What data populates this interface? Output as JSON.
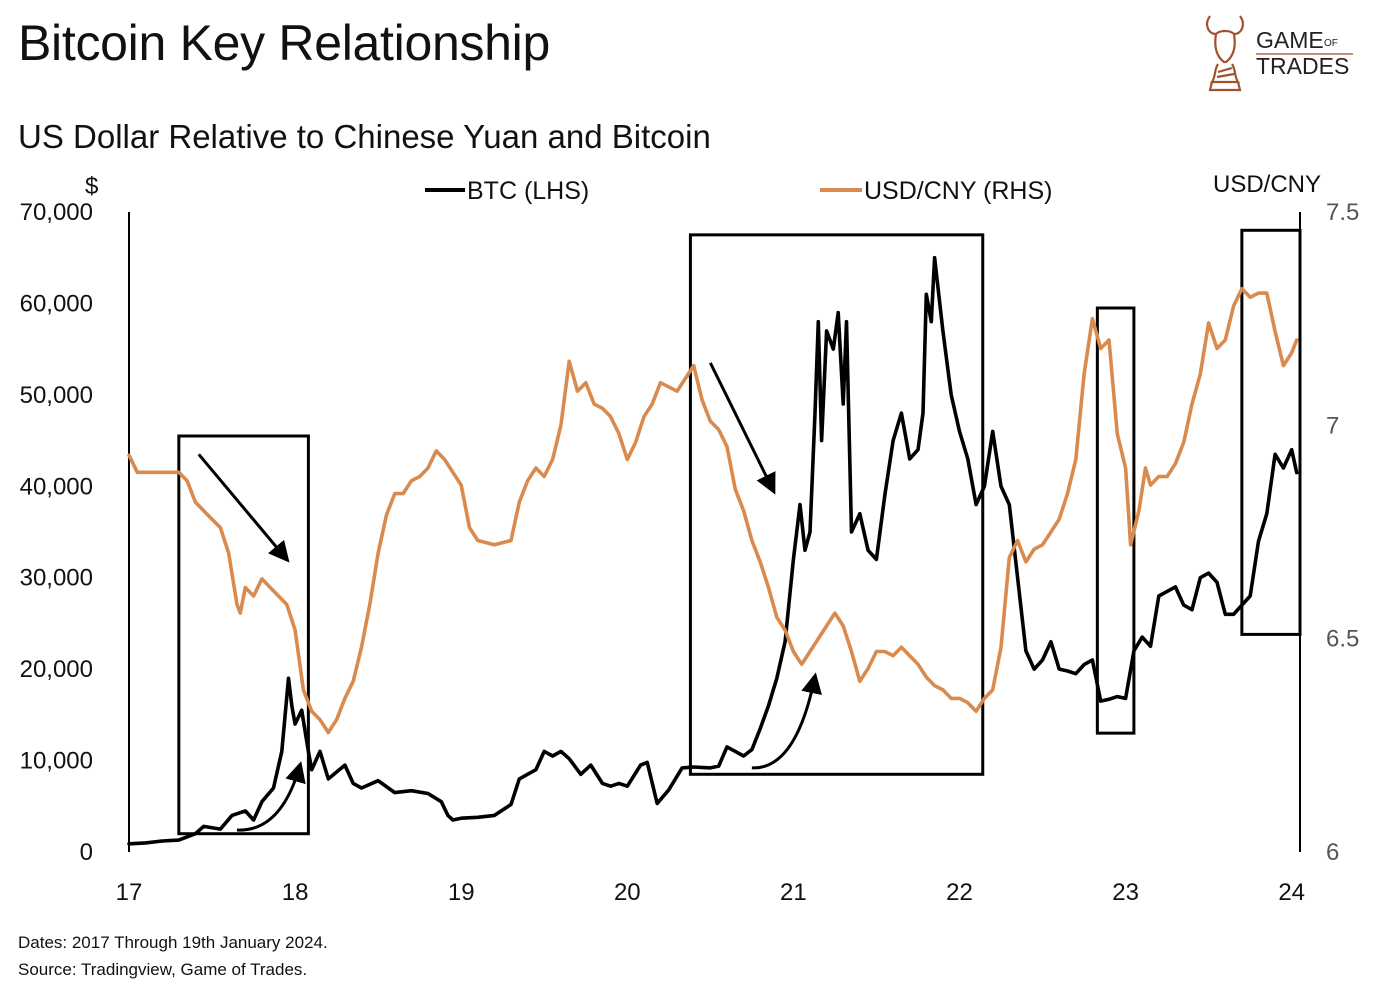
{
  "header": {
    "title": "Bitcoin Key Relationship",
    "subtitle": "US Dollar Relative to Chinese Yuan and Bitcoin"
  },
  "logo": {
    "line1": "GAME",
    "line1_small": "OF",
    "line2": "TRADES",
    "color": "#a0522d"
  },
  "footer": {
    "dates_note": "Dates: 2017 Through 19th January 2024.",
    "source_note": "Source: Tradingview, Game of Trades."
  },
  "colors": {
    "btc": "#000000",
    "usdcny": "#d98a4e",
    "box": "#000000",
    "axis": "#000000",
    "right_tick": "#555555"
  },
  "chart_data": {
    "type": "line",
    "title": "US Dollar Relative to Chinese Yuan and Bitcoin",
    "xlabel": "",
    "ylabel_left": "$",
    "ylabel_right": "USD/CNY",
    "x_ticks": [
      "17",
      "18",
      "19",
      "20",
      "21",
      "22",
      "23",
      "24"
    ],
    "x_range": [
      2017,
      2024.05
    ],
    "y_left_range": [
      0,
      70000
    ],
    "y_left_ticks": [
      "0",
      "10,000",
      "20,000",
      "30,000",
      "40,000",
      "50,000",
      "60,000",
      "70,000"
    ],
    "y_right_range": [
      6,
      7.5
    ],
    "y_right_ticks": [
      "6",
      "6.5",
      "7",
      "7.5"
    ],
    "legend": [
      "BTC (LHS)",
      "USD/CNY (RHS)"
    ],
    "series": [
      {
        "name": "BTC (LHS)",
        "axis": "left",
        "points": [
          [
            2017.0,
            900
          ],
          [
            2017.1,
            1000
          ],
          [
            2017.2,
            1200
          ],
          [
            2017.3,
            1300
          ],
          [
            2017.4,
            2000
          ],
          [
            2017.45,
            2800
          ],
          [
            2017.55,
            2500
          ],
          [
            2017.62,
            4000
          ],
          [
            2017.7,
            4500
          ],
          [
            2017.75,
            3500
          ],
          [
            2017.8,
            5500
          ],
          [
            2017.87,
            7000
          ],
          [
            2017.92,
            11000
          ],
          [
            2017.96,
            19000
          ],
          [
            2017.98,
            16000
          ],
          [
            2018.0,
            14000
          ],
          [
            2018.04,
            15500
          ],
          [
            2018.08,
            11000
          ],
          [
            2018.1,
            9000
          ],
          [
            2018.15,
            11000
          ],
          [
            2018.2,
            8000
          ],
          [
            2018.3,
            9500
          ],
          [
            2018.35,
            7500
          ],
          [
            2018.4,
            7000
          ],
          [
            2018.5,
            7800
          ],
          [
            2018.6,
            6500
          ],
          [
            2018.7,
            6700
          ],
          [
            2018.8,
            6400
          ],
          [
            2018.88,
            5500
          ],
          [
            2018.92,
            4000
          ],
          [
            2018.95,
            3500
          ],
          [
            2019.0,
            3700
          ],
          [
            2019.1,
            3800
          ],
          [
            2019.2,
            4000
          ],
          [
            2019.3,
            5200
          ],
          [
            2019.35,
            8000
          ],
          [
            2019.45,
            9000
          ],
          [
            2019.5,
            11000
          ],
          [
            2019.55,
            10500
          ],
          [
            2019.6,
            11000
          ],
          [
            2019.65,
            10200
          ],
          [
            2019.72,
            8500
          ],
          [
            2019.78,
            9500
          ],
          [
            2019.85,
            7500
          ],
          [
            2019.9,
            7200
          ],
          [
            2019.95,
            7500
          ],
          [
            2020.0,
            7200
          ],
          [
            2020.08,
            9500
          ],
          [
            2020.12,
            9800
          ],
          [
            2020.18,
            5300
          ],
          [
            2020.25,
            6800
          ],
          [
            2020.33,
            9200
          ],
          [
            2020.4,
            9300
          ],
          [
            2020.5,
            9200
          ],
          [
            2020.55,
            9400
          ],
          [
            2020.6,
            11500
          ],
          [
            2020.65,
            11000
          ],
          [
            2020.7,
            10500
          ],
          [
            2020.75,
            11200
          ],
          [
            2020.8,
            13500
          ],
          [
            2020.85,
            16000
          ],
          [
            2020.9,
            19000
          ],
          [
            2020.95,
            23000
          ],
          [
            2021.0,
            32000
          ],
          [
            2021.04,
            38000
          ],
          [
            2021.07,
            33000
          ],
          [
            2021.1,
            35000
          ],
          [
            2021.13,
            48000
          ],
          [
            2021.15,
            58000
          ],
          [
            2021.17,
            45000
          ],
          [
            2021.2,
            57000
          ],
          [
            2021.24,
            55000
          ],
          [
            2021.27,
            59000
          ],
          [
            2021.3,
            49000
          ],
          [
            2021.32,
            58000
          ],
          [
            2021.35,
            35000
          ],
          [
            2021.4,
            37000
          ],
          [
            2021.45,
            33000
          ],
          [
            2021.5,
            32000
          ],
          [
            2021.55,
            39000
          ],
          [
            2021.6,
            45000
          ],
          [
            2021.65,
            48000
          ],
          [
            2021.7,
            43000
          ],
          [
            2021.75,
            44000
          ],
          [
            2021.78,
            48000
          ],
          [
            2021.8,
            61000
          ],
          [
            2021.83,
            58000
          ],
          [
            2021.85,
            65000
          ],
          [
            2021.9,
            57000
          ],
          [
            2021.95,
            50000
          ],
          [
            2022.0,
            46000
          ],
          [
            2022.05,
            43000
          ],
          [
            2022.1,
            38000
          ],
          [
            2022.15,
            40000
          ],
          [
            2022.2,
            46000
          ],
          [
            2022.25,
            40000
          ],
          [
            2022.3,
            38000
          ],
          [
            2022.35,
            30000
          ],
          [
            2022.4,
            22000
          ],
          [
            2022.45,
            20000
          ],
          [
            2022.5,
            21000
          ],
          [
            2022.55,
            23000
          ],
          [
            2022.6,
            20000
          ],
          [
            2022.65,
            19800
          ],
          [
            2022.7,
            19500
          ],
          [
            2022.75,
            20500
          ],
          [
            2022.8,
            21000
          ],
          [
            2022.85,
            16500
          ],
          [
            2022.9,
            16700
          ],
          [
            2022.95,
            17000
          ],
          [
            2023.0,
            16800
          ],
          [
            2023.05,
            22000
          ],
          [
            2023.1,
            23500
          ],
          [
            2023.15,
            22500
          ],
          [
            2023.2,
            28000
          ],
          [
            2023.25,
            28500
          ],
          [
            2023.3,
            29000
          ],
          [
            2023.35,
            27000
          ],
          [
            2023.4,
            26500
          ],
          [
            2023.45,
            30000
          ],
          [
            2023.5,
            30500
          ],
          [
            2023.55,
            29500
          ],
          [
            2023.6,
            26000
          ],
          [
            2023.65,
            26000
          ],
          [
            2023.7,
            27000
          ],
          [
            2023.75,
            28000
          ],
          [
            2023.8,
            34000
          ],
          [
            2023.85,
            37000
          ],
          [
            2023.9,
            43500
          ],
          [
            2023.95,
            42000
          ],
          [
            2024.0,
            44000
          ],
          [
            2024.03,
            41500
          ]
        ]
      },
      {
        "name": "USD/CNY (RHS)",
        "axis": "right",
        "points": [
          [
            2017.0,
            6.93
          ],
          [
            2017.05,
            6.89
          ],
          [
            2017.1,
            6.89
          ],
          [
            2017.2,
            6.89
          ],
          [
            2017.3,
            6.89
          ],
          [
            2017.35,
            6.87
          ],
          [
            2017.4,
            6.82
          ],
          [
            2017.45,
            6.8
          ],
          [
            2017.5,
            6.78
          ],
          [
            2017.55,
            6.76
          ],
          [
            2017.6,
            6.7
          ],
          [
            2017.65,
            6.58
          ],
          [
            2017.67,
            6.56
          ],
          [
            2017.7,
            6.62
          ],
          [
            2017.75,
            6.6
          ],
          [
            2017.8,
            6.64
          ],
          [
            2017.85,
            6.62
          ],
          [
            2017.9,
            6.6
          ],
          [
            2017.95,
            6.58
          ],
          [
            2018.0,
            6.52
          ],
          [
            2018.05,
            6.38
          ],
          [
            2018.1,
            6.33
          ],
          [
            2018.15,
            6.31
          ],
          [
            2018.2,
            6.28
          ],
          [
            2018.25,
            6.31
          ],
          [
            2018.3,
            6.36
          ],
          [
            2018.35,
            6.4
          ],
          [
            2018.4,
            6.48
          ],
          [
            2018.45,
            6.58
          ],
          [
            2018.5,
            6.7
          ],
          [
            2018.55,
            6.79
          ],
          [
            2018.6,
            6.84
          ],
          [
            2018.65,
            6.84
          ],
          [
            2018.7,
            6.87
          ],
          [
            2018.75,
            6.88
          ],
          [
            2018.8,
            6.9
          ],
          [
            2018.85,
            6.94
          ],
          [
            2018.9,
            6.92
          ],
          [
            2018.95,
            6.89
          ],
          [
            2019.0,
            6.86
          ],
          [
            2019.05,
            6.76
          ],
          [
            2019.1,
            6.73
          ],
          [
            2019.2,
            6.72
          ],
          [
            2019.3,
            6.73
          ],
          [
            2019.35,
            6.82
          ],
          [
            2019.4,
            6.87
          ],
          [
            2019.45,
            6.9
          ],
          [
            2019.5,
            6.88
          ],
          [
            2019.55,
            6.92
          ],
          [
            2019.6,
            7.0
          ],
          [
            2019.65,
            7.15
          ],
          [
            2019.7,
            7.08
          ],
          [
            2019.75,
            7.1
          ],
          [
            2019.8,
            7.05
          ],
          [
            2019.85,
            7.04
          ],
          [
            2019.9,
            7.02
          ],
          [
            2019.95,
            6.98
          ],
          [
            2020.0,
            6.92
          ],
          [
            2020.05,
            6.96
          ],
          [
            2020.1,
            7.02
          ],
          [
            2020.15,
            7.05
          ],
          [
            2020.2,
            7.1
          ],
          [
            2020.3,
            7.08
          ],
          [
            2020.4,
            7.14
          ],
          [
            2020.45,
            7.06
          ],
          [
            2020.5,
            7.01
          ],
          [
            2020.55,
            6.99
          ],
          [
            2020.6,
            6.95
          ],
          [
            2020.65,
            6.85
          ],
          [
            2020.7,
            6.8
          ],
          [
            2020.75,
            6.73
          ],
          [
            2020.8,
            6.68
          ],
          [
            2020.85,
            6.62
          ],
          [
            2020.9,
            6.55
          ],
          [
            2020.95,
            6.52
          ],
          [
            2021.0,
            6.47
          ],
          [
            2021.05,
            6.44
          ],
          [
            2021.1,
            6.47
          ],
          [
            2021.15,
            6.5
          ],
          [
            2021.2,
            6.53
          ],
          [
            2021.25,
            6.56
          ],
          [
            2021.3,
            6.53
          ],
          [
            2021.35,
            6.47
          ],
          [
            2021.4,
            6.4
          ],
          [
            2021.45,
            6.43
          ],
          [
            2021.5,
            6.47
          ],
          [
            2021.55,
            6.47
          ],
          [
            2021.6,
            6.46
          ],
          [
            2021.65,
            6.48
          ],
          [
            2021.7,
            6.46
          ],
          [
            2021.75,
            6.44
          ],
          [
            2021.8,
            6.41
          ],
          [
            2021.85,
            6.39
          ],
          [
            2021.9,
            6.38
          ],
          [
            2021.95,
            6.36
          ],
          [
            2022.0,
            6.36
          ],
          [
            2022.05,
            6.35
          ],
          [
            2022.1,
            6.33
          ],
          [
            2022.15,
            6.36
          ],
          [
            2022.2,
            6.38
          ],
          [
            2022.25,
            6.48
          ],
          [
            2022.3,
            6.69
          ],
          [
            2022.35,
            6.73
          ],
          [
            2022.4,
            6.68
          ],
          [
            2022.45,
            6.71
          ],
          [
            2022.5,
            6.72
          ],
          [
            2022.55,
            6.75
          ],
          [
            2022.6,
            6.78
          ],
          [
            2022.65,
            6.84
          ],
          [
            2022.7,
            6.92
          ],
          [
            2022.75,
            7.12
          ],
          [
            2022.8,
            7.25
          ],
          [
            2022.85,
            7.18
          ],
          [
            2022.9,
            7.2
          ],
          [
            2022.95,
            6.98
          ],
          [
            2023.0,
            6.9
          ],
          [
            2023.03,
            6.72
          ],
          [
            2023.08,
            6.8
          ],
          [
            2023.12,
            6.9
          ],
          [
            2023.15,
            6.86
          ],
          [
            2023.2,
            6.88
          ],
          [
            2023.25,
            6.88
          ],
          [
            2023.3,
            6.91
          ],
          [
            2023.35,
            6.96
          ],
          [
            2023.4,
            7.05
          ],
          [
            2023.45,
            7.12
          ],
          [
            2023.5,
            7.24
          ],
          [
            2023.55,
            7.18
          ],
          [
            2023.6,
            7.2
          ],
          [
            2023.65,
            7.28
          ],
          [
            2023.7,
            7.32
          ],
          [
            2023.75,
            7.3
          ],
          [
            2023.8,
            7.31
          ],
          [
            2023.85,
            7.31
          ],
          [
            2023.9,
            7.22
          ],
          [
            2023.95,
            7.14
          ],
          [
            2024.0,
            7.17
          ],
          [
            2024.03,
            7.2
          ]
        ]
      }
    ],
    "annotation_boxes": [
      {
        "x_from": 2017.3,
        "x_to": 2018.08,
        "y_from": 2000,
        "y_to": 45500
      },
      {
        "x_from": 2020.38,
        "x_to": 2022.14,
        "y_from": 8500,
        "y_to": 67500
      },
      {
        "x_from": 2022.83,
        "x_to": 2023.05,
        "y_from": 13000,
        "y_to": 59500
      },
      {
        "x_from": 2023.7,
        "x_to": 2024.05,
        "y_from": 23800,
        "y_to": 68000
      }
    ],
    "annotation_arrows": [
      {
        "kind": "straight",
        "from": [
          2017.42,
          43500
        ],
        "to": [
          2017.95,
          32000
        ]
      },
      {
        "kind": "curved",
        "from": [
          2017.65,
          2400
        ],
        "to": [
          2018.03,
          9500
        ]
      },
      {
        "kind": "straight",
        "from": [
          2020.5,
          53500
        ],
        "to": [
          2020.88,
          39500
        ]
      },
      {
        "kind": "curved",
        "from": [
          2020.75,
          9200
        ],
        "to": [
          2021.13,
          19200
        ]
      }
    ]
  }
}
